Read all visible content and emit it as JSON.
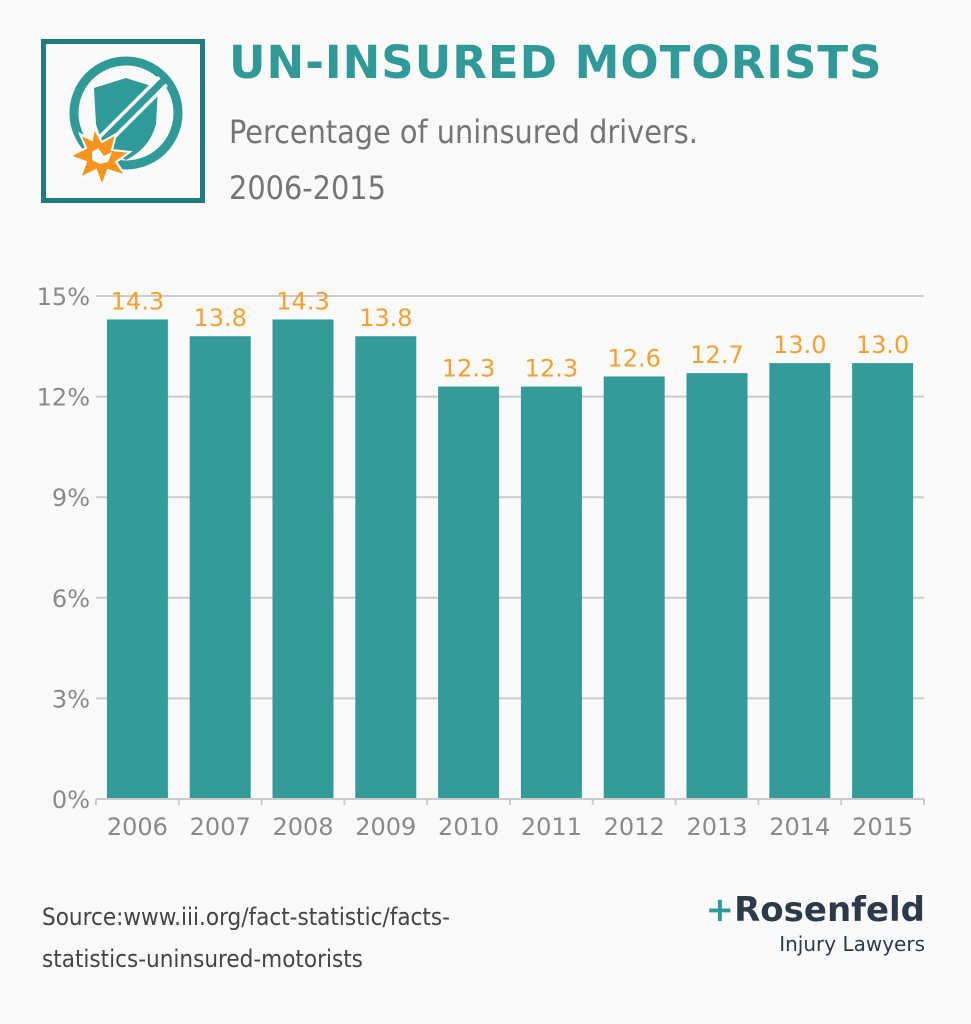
{
  "header": {
    "title": "UN-INSURED MOTORISTS",
    "subtitle_line1": "Percentage of uninsured drivers.",
    "subtitle_line2": "2006-2015"
  },
  "logo_icon": "shield-with-broken-no-sign-icon",
  "colors": {
    "bar": "#339b98",
    "accent": "#2f9a97",
    "data_label": "#f5a030",
    "axis_text": "#8a8a8a",
    "grid": "#cccccc"
  },
  "chart_data": {
    "type": "bar",
    "title": "UN-INSURED MOTORISTS",
    "categories": [
      "2006",
      "2007",
      "2008",
      "2009",
      "2010",
      "2011",
      "2012",
      "2013",
      "2014",
      "2015"
    ],
    "values": [
      14.3,
      13.8,
      14.3,
      13.8,
      12.3,
      12.3,
      12.6,
      12.7,
      13.0,
      13.0
    ],
    "data_labels": [
      "14.3",
      "13.8",
      "14.3",
      "13.8",
      "12.3",
      "12.3",
      "12.6",
      "12.7",
      "13.0",
      "13.0"
    ],
    "y_ticks": [
      0,
      3,
      6,
      9,
      12,
      15
    ],
    "y_tick_labels": [
      "0%",
      "3%",
      "6%",
      "9%",
      "12%",
      "15%"
    ],
    "ylim": [
      0,
      15
    ],
    "xlabel": "",
    "ylabel": "",
    "grid": true,
    "legend": "none"
  },
  "footer": {
    "source_text": "Source:www.iii.org/fact-statistic/facts-statistics-uninsured-motorists",
    "brand_plus": "+",
    "brand_name": "Rosenfeld",
    "brand_sub": "Injury Lawyers"
  }
}
